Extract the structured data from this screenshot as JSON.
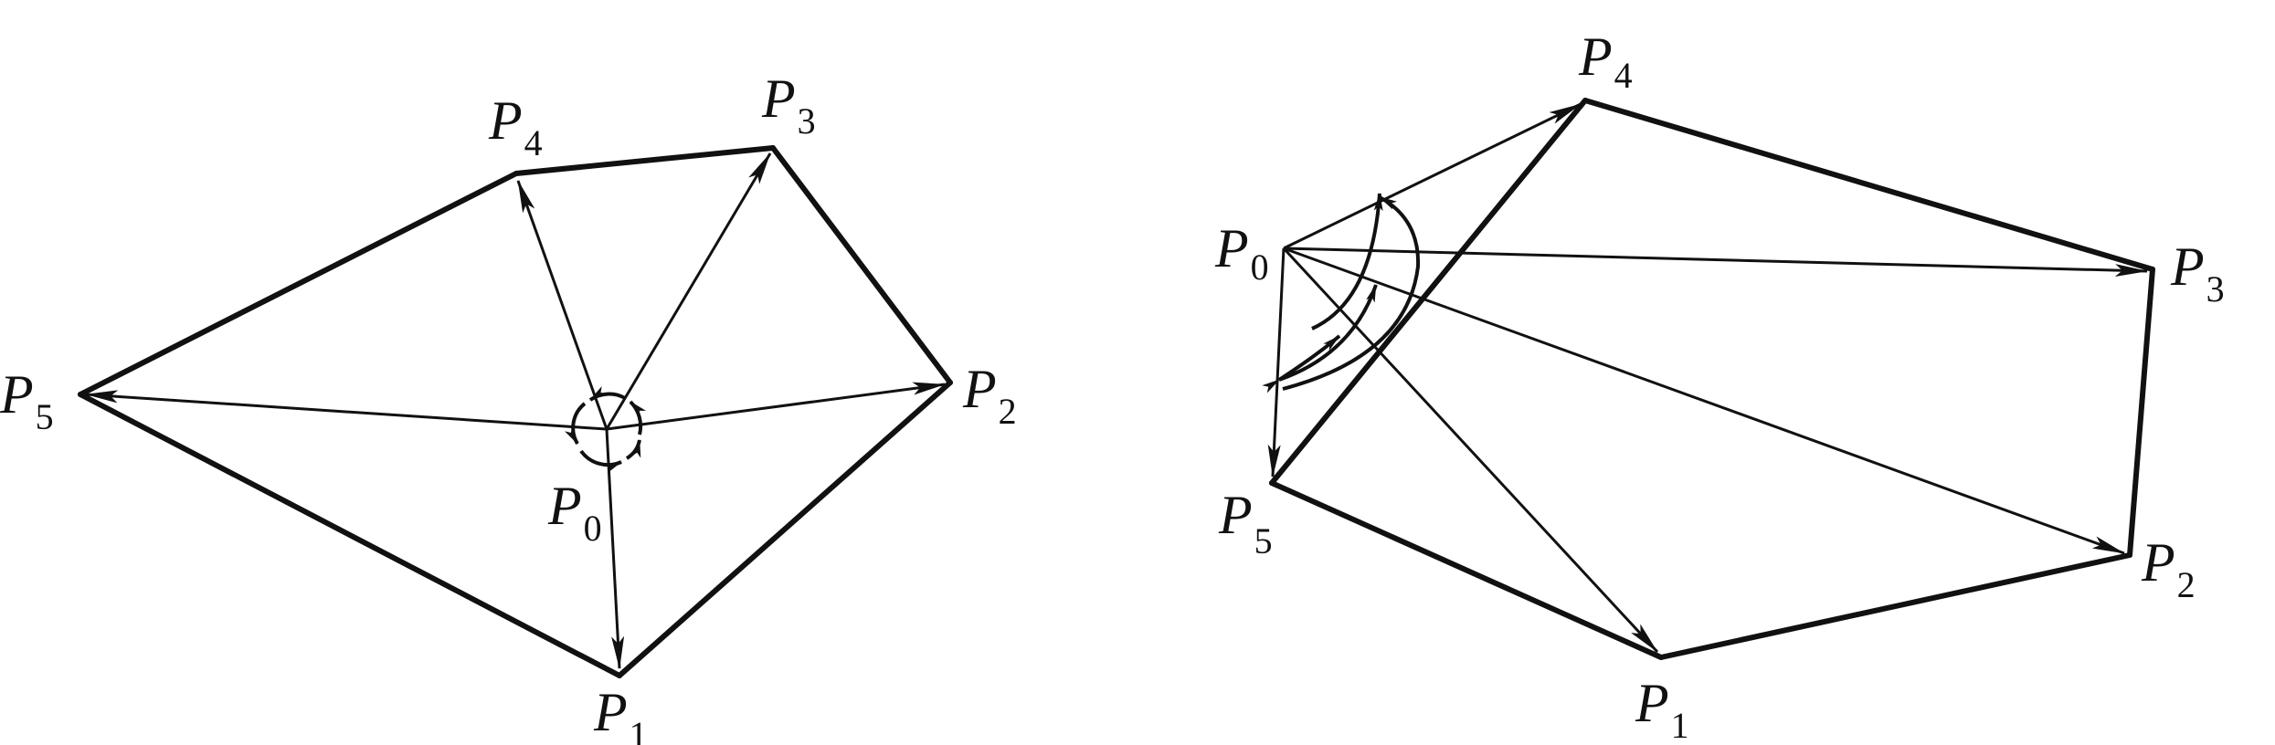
{
  "figures": [
    {
      "id": "left",
      "center": "P0",
      "labels": [
        {
          "id": "P0",
          "letter": "P",
          "sub": "0"
        },
        {
          "id": "P1",
          "letter": "P",
          "sub": "1"
        },
        {
          "id": "P2",
          "letter": "P",
          "sub": "2"
        },
        {
          "id": "P3",
          "letter": "P",
          "sub": "3"
        },
        {
          "id": "P4",
          "letter": "P",
          "sub": "4"
        },
        {
          "id": "P5",
          "letter": "P",
          "sub": "5"
        }
      ],
      "polygon_edges": [
        [
          "P1",
          "P2"
        ],
        [
          "P2",
          "P3"
        ],
        [
          "P3",
          "P4"
        ],
        [
          "P4",
          "P5"
        ],
        [
          "P5",
          "P1"
        ]
      ],
      "vectors": [
        [
          "P0",
          "P1"
        ],
        [
          "P0",
          "P2"
        ],
        [
          "P0",
          "P3"
        ],
        [
          "P0",
          "P4"
        ],
        [
          "P0",
          "P5"
        ]
      ]
    },
    {
      "id": "right",
      "center": "P0",
      "labels": [
        {
          "id": "P0",
          "letter": "P",
          "sub": "0"
        },
        {
          "id": "P1",
          "letter": "P",
          "sub": "1"
        },
        {
          "id": "P2",
          "letter": "P",
          "sub": "2"
        },
        {
          "id": "P3",
          "letter": "P",
          "sub": "3"
        },
        {
          "id": "P4",
          "letter": "P",
          "sub": "4"
        },
        {
          "id": "P5",
          "letter": "P",
          "sub": "5"
        }
      ],
      "polygon_edges": [
        [
          "P5",
          "P1"
        ],
        [
          "P1",
          "P2"
        ],
        [
          "P2",
          "P3"
        ],
        [
          "P3",
          "P4"
        ],
        [
          "P4",
          "P5"
        ]
      ],
      "vectors": [
        [
          "P0",
          "P1"
        ],
        [
          "P0",
          "P2"
        ],
        [
          "P0",
          "P3"
        ],
        [
          "P0",
          "P4"
        ],
        [
          "P0",
          "P5"
        ]
      ]
    }
  ],
  "colors": {
    "stroke": "#111111",
    "background": "#ffffff"
  }
}
